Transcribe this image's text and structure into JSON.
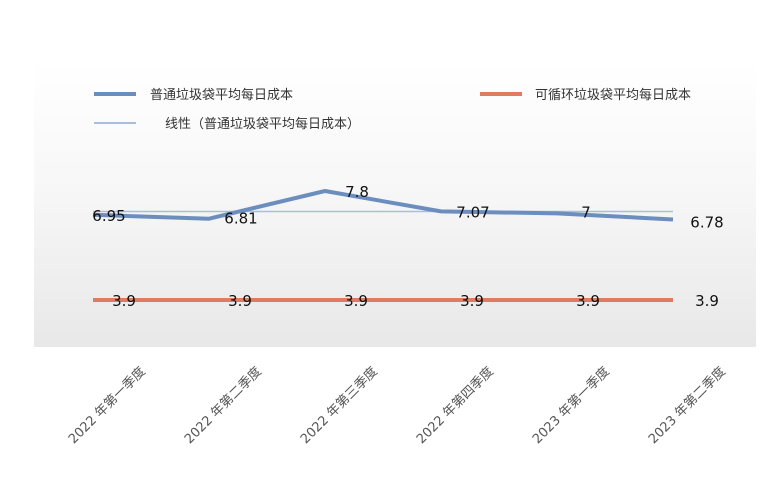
{
  "chart_data": {
    "type": "line",
    "categories": [
      "2022 年第一季度",
      "2022 年第二季度",
      "2022 年第三季度",
      "2022 年第四季度",
      "2023 年第一季度",
      "2023 年第二季度"
    ],
    "series": [
      {
        "name": "普通垃圾袋平均每日成本",
        "values": [
          6.95,
          6.81,
          7.8,
          7.07,
          7,
          6.78
        ],
        "color": "#6c8ebf"
      },
      {
        "name": "可循环垃圾袋平均每日成本",
        "values": [
          3.9,
          3.9,
          3.9,
          3.9,
          3.9,
          3.9
        ],
        "color": "#e07b62"
      }
    ],
    "trendline": {
      "name": "线性（普通垃圾袋平均每日成本）",
      "value": 7.068,
      "color": "#a9bedc"
    },
    "legend": "top",
    "grid": false,
    "data_labels": true
  }
}
